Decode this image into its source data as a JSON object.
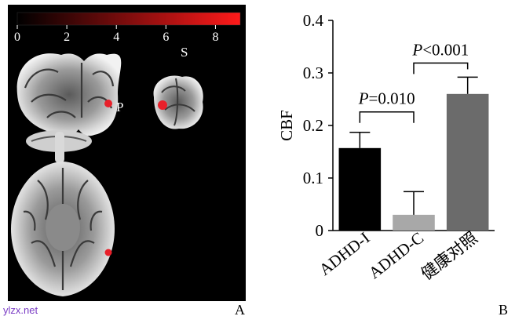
{
  "figure": {
    "watermark": "ylzx.net",
    "panel_a_label": "A",
    "panel_b_label": "B"
  },
  "brain_panel": {
    "colorbar_ticks": [
      "0",
      "2",
      "4",
      "6",
      "8"
    ],
    "colorbar_range": [
      0,
      9
    ],
    "colors": {
      "background": "#000000",
      "colorbar_low": "#000000",
      "colorbar_high": "#ff1a1a",
      "activation": "#e8202a"
    },
    "view_labels": {
      "sagittal": "S",
      "region": "P"
    }
  },
  "chart_data": {
    "type": "bar",
    "title": "",
    "xlabel": "",
    "ylabel": "CBF",
    "ylim": [
      0,
      0.4
    ],
    "yticks": [
      0,
      0.1,
      0.2,
      0.3,
      0.4
    ],
    "ytick_labels": [
      "0",
      "0.1",
      "0.2",
      "0.3",
      "0.4"
    ],
    "categories": [
      "ADHD-I",
      "ADHD-C",
      "健康对照"
    ],
    "values": [
      0.157,
      0.03,
      0.26
    ],
    "errors": [
      0.03,
      0.044,
      0.032
    ],
    "bar_colors": [
      "#000000",
      "#a8a8a8",
      "#6b6b6b"
    ],
    "annotations": [
      {
        "from": 0,
        "to": 1,
        "prefix": "P",
        "text": "=0.010"
      },
      {
        "from": 1,
        "to": 2,
        "prefix": "P",
        "text": "<0.001"
      }
    ],
    "grid": false
  }
}
